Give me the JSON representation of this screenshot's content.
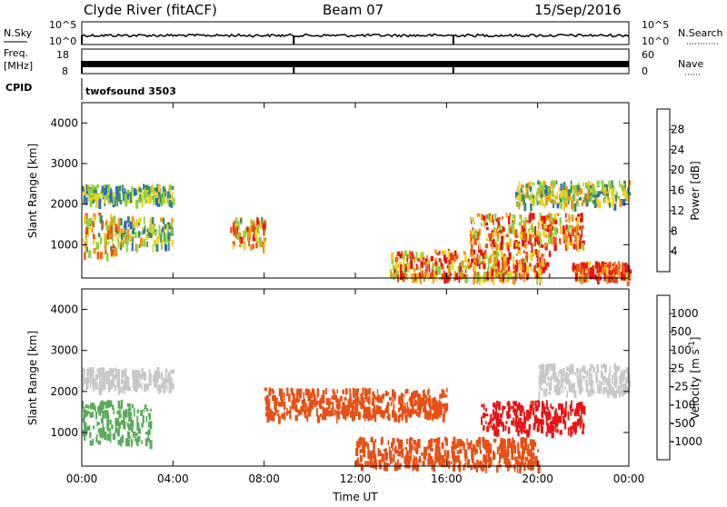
{
  "header": {
    "station": "Clyde River (fitACF)",
    "beam": "Beam 07",
    "date": "15/Sep/2016"
  },
  "status_panel": {
    "nsky_label": "N.Sky",
    "nsearch_label": "N.Search",
    "freq_label_1": "Freq.",
    "freq_label_2": "[MHz]",
    "nave_label": "Nave",
    "cpid_label": "CPID",
    "cpid_value": "twofsound 3503",
    "noise_ticks_left": [
      "10^5",
      "10^0"
    ],
    "noise_ticks_right": [
      "10^5",
      "10^0"
    ],
    "freq_ticks_left": [
      "18",
      "8"
    ],
    "nave_ticks_right": [
      "60",
      "0"
    ]
  },
  "chart_data": [
    {
      "type": "heatmap",
      "panel": "power",
      "ylabel": "Slant Range [km]",
      "xlabel": "",
      "ylim": [
        180,
        4500
      ],
      "yticks": [
        1000,
        2000,
        3000,
        4000
      ],
      "x_ticks": [
        "00:00",
        "04:00",
        "08:00",
        "12:00",
        "16:00",
        "20:00",
        "00:00"
      ],
      "colorbar_label": "Power [dB]",
      "colorbar_ticks": [
        "4",
        "8",
        "12",
        "16",
        "20",
        "24",
        "28"
      ],
      "colorbar_range": [
        0,
        30
      ],
      "colors": [
        "#1414f0",
        "#2d64c8",
        "#3a8a6a",
        "#8cd23c",
        "#f0d21e",
        "#f09614",
        "#e65014",
        "#e61414"
      ],
      "echo_regions": [
        {
          "t": [
            0.0,
            1.5
          ],
          "range": [
            800,
            1800
          ],
          "value": 18
        },
        {
          "t": [
            1.5,
            4.0
          ],
          "range": [
            1000,
            1700
          ],
          "value": 14
        },
        {
          "t": [
            0.0,
            4.0
          ],
          "range": [
            2100,
            2500
          ],
          "value": 12
        },
        {
          "t": [
            6.5,
            8.0
          ],
          "range": [
            1000,
            1700
          ],
          "value": 20
        },
        {
          "t": [
            13.5,
            20.5
          ],
          "range": [
            200,
            900
          ],
          "value": 22
        },
        {
          "t": [
            17.0,
            22.0
          ],
          "range": [
            1000,
            1800
          ],
          "value": 22
        },
        {
          "t": [
            19.0,
            24.0
          ],
          "range": [
            2000,
            2600
          ],
          "value": 14
        },
        {
          "t": [
            21.5,
            24.0
          ],
          "range": [
            200,
            600
          ],
          "value": 28
        }
      ]
    },
    {
      "type": "heatmap",
      "panel": "velocity",
      "ylabel": "Slant Range [km]",
      "xlabel": "Time UT",
      "ylim": [
        180,
        4500
      ],
      "yticks": [
        1000,
        2000,
        3000,
        4000
      ],
      "x_ticks": [
        "00:00",
        "04:00",
        "08:00",
        "12:00",
        "16:00",
        "20:00",
        "00:00"
      ],
      "colorbar_label": "Velocity [m s^-1]",
      "colorbar_ticks": [
        "1000",
        "500",
        "100",
        "25",
        "-25",
        "-100",
        "-500",
        "-1000"
      ],
      "colors": [
        "#2846c8",
        "#3a8a6a",
        "#5aaa5a",
        "#78d23c",
        "#c8c8c8",
        "#f0c81e",
        "#f08214",
        "#e65014",
        "#e61414"
      ],
      "echo_regions": [
        {
          "t": [
            0.0,
            3.0
          ],
          "range": [
            800,
            1800
          ],
          "value": 300
        },
        {
          "t": [
            0.0,
            4.0
          ],
          "range": [
            2100,
            2600
          ],
          "value": 0
        },
        {
          "t": [
            8.0,
            16.0
          ],
          "range": [
            1400,
            2100
          ],
          "value": -300
        },
        {
          "t": [
            12.0,
            20.0
          ],
          "range": [
            200,
            900
          ],
          "value": -150
        },
        {
          "t": [
            17.5,
            22.0
          ],
          "range": [
            1000,
            1800
          ],
          "value": -700
        },
        {
          "t": [
            20.0,
            24.0
          ],
          "range": [
            2000,
            2700
          ],
          "value": 0
        }
      ]
    }
  ]
}
